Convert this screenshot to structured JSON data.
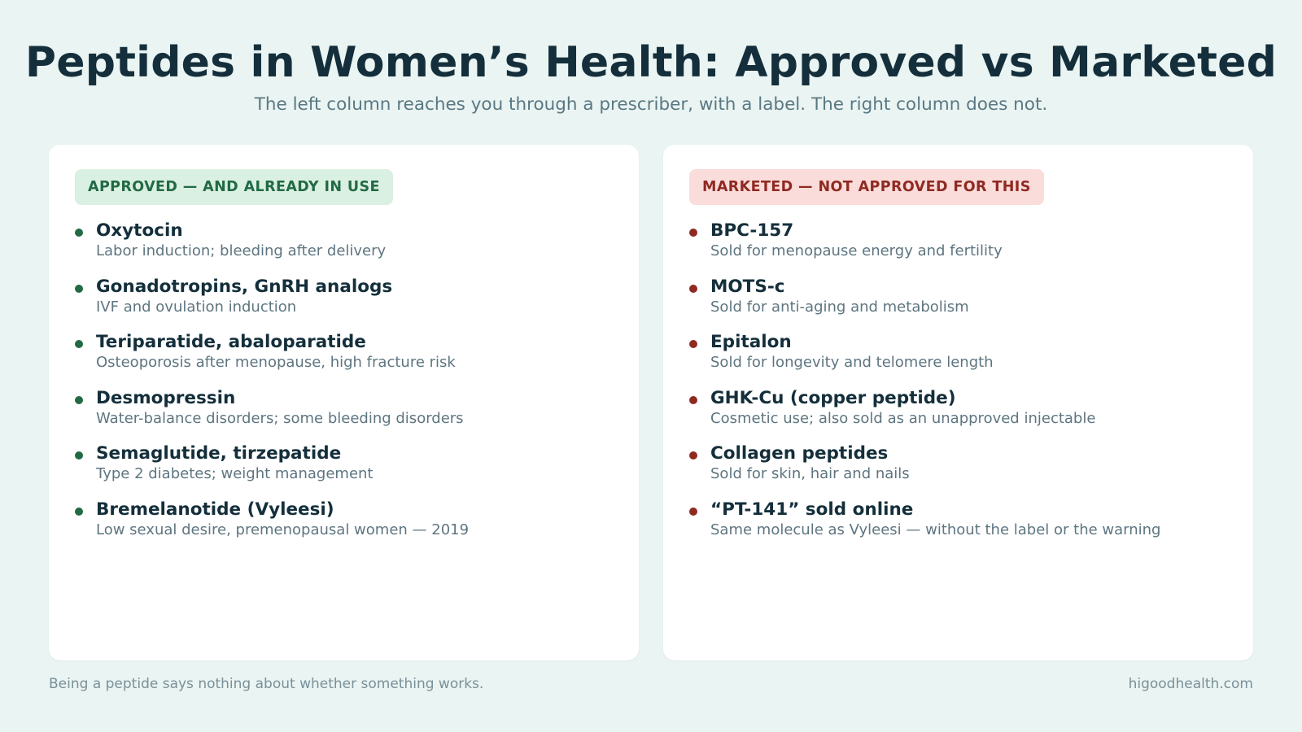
{
  "header": {
    "title": "Peptides in Women’s Health: Approved vs Marketed",
    "subtitle": "The left column reaches you through a prescriber, with a label. The right column does not."
  },
  "approved": {
    "badge": "APPROVED — AND ALREADY IN USE",
    "accent_color": "#226a45",
    "items": [
      {
        "name": "Oxytocin",
        "desc": "Labor induction; bleeding after delivery"
      },
      {
        "name": "Gonadotropins, GnRH analogs",
        "desc": "IVF and ovulation induction"
      },
      {
        "name": "Teriparatide, abaloparatide",
        "desc": "Osteoporosis after menopause, high fracture risk"
      },
      {
        "name": "Desmopressin",
        "desc": "Water-balance disorders; some bleeding disorders"
      },
      {
        "name": "Semaglutide, tirzepatide",
        "desc": "Type 2 diabetes; weight management"
      },
      {
        "name": "Bremelanotide (Vyleesi)",
        "desc": "Low sexual desire, premenopausal women — 2019"
      }
    ]
  },
  "marketed": {
    "badge": "MARKETED — NOT APPROVED FOR THIS",
    "accent_color": "#8f2a22",
    "items": [
      {
        "name": "BPC-157",
        "desc": "Sold for menopause energy and fertility"
      },
      {
        "name": "MOTS-c",
        "desc": "Sold for anti-aging and metabolism"
      },
      {
        "name": "Epitalon",
        "desc": "Sold for longevity and telomere length"
      },
      {
        "name": "GHK-Cu (copper peptide)",
        "desc": "Cosmetic use; also sold as an unapproved injectable"
      },
      {
        "name": "Collagen peptides",
        "desc": "Sold for skin, hair and nails"
      },
      {
        "name": "“PT-141” sold online",
        "desc": "Same molecule as Vyleesi — without the label or the warning"
      }
    ]
  },
  "footer": {
    "note": "Being a peptide says nothing about whether something works.",
    "site": "higoodhealth.com"
  }
}
